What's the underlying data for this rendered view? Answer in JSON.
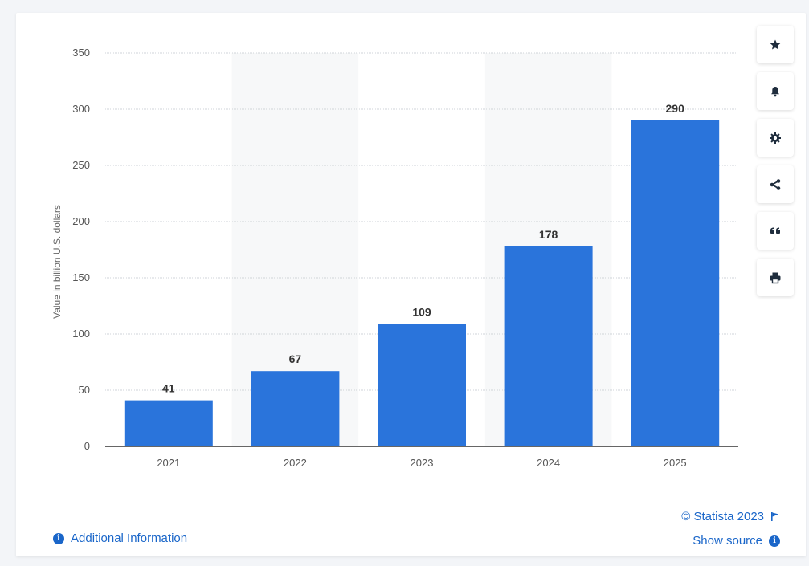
{
  "chart_data": {
    "type": "bar",
    "categories": [
      "2021",
      "2022",
      "2023",
      "2024",
      "2025"
    ],
    "values": [
      41,
      67,
      109,
      178,
      290
    ],
    "ylabel": "Value in billion U.S. dollars",
    "xlabel": "",
    "ylim": [
      0,
      350
    ],
    "yticks": [
      0,
      50,
      100,
      150,
      200,
      250,
      300,
      350
    ],
    "bar_color": "#2a74db",
    "grid": true,
    "data_labels": true
  },
  "toolbar": {
    "buttons": [
      {
        "name": "favorite",
        "icon": "star-icon"
      },
      {
        "name": "notification",
        "icon": "bell-icon"
      },
      {
        "name": "settings",
        "icon": "gear-icon"
      },
      {
        "name": "share",
        "icon": "share-icon"
      },
      {
        "name": "cite",
        "icon": "quote-icon"
      },
      {
        "name": "print",
        "icon": "printer-icon"
      }
    ]
  },
  "footer": {
    "additional_info": "Additional Information",
    "copyright": "© Statista 2023",
    "show_source": "Show source"
  },
  "colors": {
    "accent": "#1a66c9",
    "bar": "#2a74db",
    "band": "#f7f8f9",
    "grid": "#cfd3d8",
    "axis_text": "#555555"
  }
}
